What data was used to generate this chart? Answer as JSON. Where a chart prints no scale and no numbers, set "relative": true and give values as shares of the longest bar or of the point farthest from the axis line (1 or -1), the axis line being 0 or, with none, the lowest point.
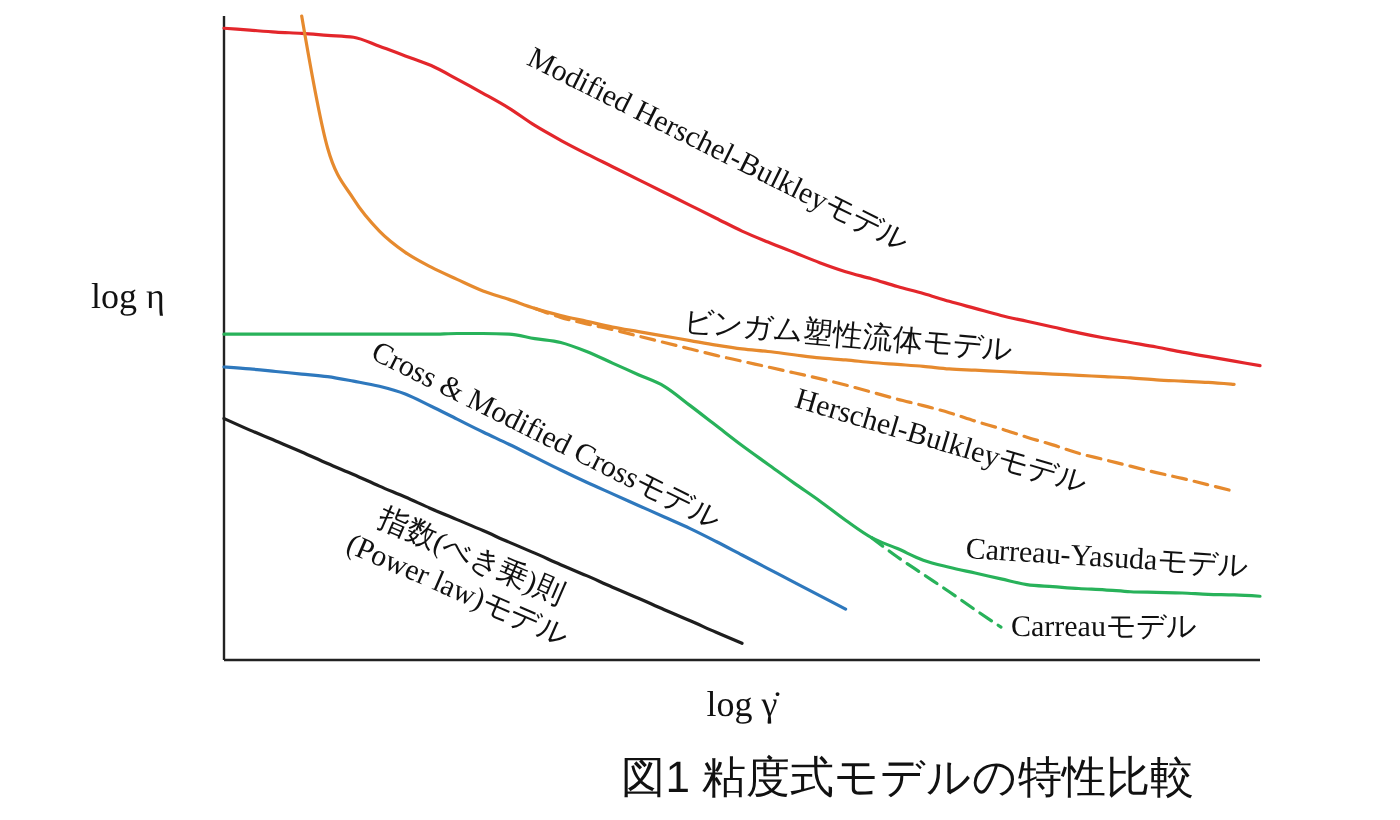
{
  "chart_data": {
    "type": "line",
    "relative": true,
    "title": "図1 粘度式モデルの特性比較",
    "xlabel": "log γ̇",
    "ylabel": "log η",
    "categories": [
      null,
      null,
      null,
      null,
      null,
      null,
      null,
      null,
      null,
      null,
      null,
      null,
      null,
      null,
      null,
      null,
      null,
      null,
      null,
      null,
      null,
      null,
      null,
      null,
      null,
      null,
      null,
      null,
      null,
      null,
      null,
      null,
      null,
      null,
      null,
      null,
      null,
      null,
      null,
      null,
      null
    ],
    "series": [
      {
        "name": "Modified Herschel-Bulkleyモデル",
        "color": "#e3262b",
        "values": [
          0.981,
          0.978,
          0.975,
          0.973,
          0.97,
          0.967,
          0.953,
          0.938,
          0.923,
          0.902,
          0.88,
          0.857,
          0.83,
          0.807,
          0.786,
          0.766,
          0.746,
          0.726,
          0.706,
          0.686,
          0.666,
          0.649,
          0.633,
          0.617,
          0.603,
          0.592,
          0.58,
          0.569,
          0.557,
          0.546,
          0.535,
          0.526,
          0.517,
          0.508,
          0.5,
          0.493,
          0.486,
          0.478,
          0.471,
          0.464,
          0.457
        ]
      },
      {
        "name": "ビンガム塑性流体モデル",
        "color": "#e68a2e",
        "values": [
          null,
          null,
          null,
          1.0,
          0.795,
          0.716,
          0.666,
          0.633,
          0.61,
          0.591,
          0.573,
          0.56,
          0.546,
          0.535,
          0.526,
          0.517,
          0.51,
          0.503,
          0.496,
          0.489,
          0.483,
          0.479,
          0.474,
          0.469,
          0.466,
          0.462,
          0.459,
          0.456,
          0.452,
          0.45,
          0.448,
          0.446,
          0.444,
          0.442,
          0.44,
          0.438,
          0.435,
          0.433,
          0.431,
          0.428,
          null
        ]
      },
      {
        "name": "Herschel-Bulkleyモデル",
        "color": "#e68a2e",
        "line_style": "dashed",
        "values": [
          null,
          null,
          null,
          null,
          null,
          null,
          null,
          null,
          null,
          null,
          null,
          null,
          0.546,
          0.532,
          0.522,
          0.513,
          0.503,
          0.493,
          0.483,
          0.473,
          0.464,
          0.455,
          0.446,
          0.437,
          0.427,
          0.416,
          0.405,
          0.395,
          0.384,
          0.371,
          0.359,
          0.346,
          0.334,
          0.321,
          0.311,
          0.301,
          0.291,
          0.282,
          0.272,
          0.262,
          null
        ]
      },
      {
        "name": "Carreau-Yasudaモデル",
        "color": "#28b25a",
        "values": [
          0.506,
          0.506,
          0.506,
          0.506,
          0.506,
          0.506,
          0.506,
          0.506,
          0.506,
          0.507,
          0.507,
          0.506,
          0.499,
          0.493,
          0.479,
          0.461,
          0.443,
          0.425,
          0.395,
          0.364,
          0.333,
          0.304,
          0.275,
          0.247,
          0.217,
          0.19,
          0.173,
          0.155,
          0.144,
          0.135,
          0.126,
          0.117,
          0.114,
          0.111,
          0.109,
          0.106,
          0.105,
          0.104,
          0.102,
          0.101,
          0.099
        ]
      },
      {
        "name": "Carreauモデル",
        "color": "#28b25a",
        "line_style": "dashed",
        "values": [
          null,
          null,
          null,
          null,
          null,
          null,
          null,
          null,
          null,
          null,
          null,
          null,
          null,
          null,
          null,
          null,
          null,
          null,
          null,
          null,
          null,
          null,
          null,
          null,
          null,
          0.19,
          0.16,
          0.133,
          0.106,
          0.078,
          0.051,
          null,
          null,
          null,
          null,
          null,
          null,
          null,
          null,
          null,
          null
        ]
      },
      {
        "name": "Cross & Modified Crossモデル",
        "color": "#2e78bd",
        "values": [
          0.455,
          0.452,
          0.448,
          0.444,
          0.44,
          0.433,
          0.425,
          0.413,
          0.394,
          0.374,
          0.354,
          0.335,
          0.315,
          0.295,
          0.276,
          0.258,
          0.24,
          0.222,
          0.204,
          0.184,
          0.163,
          0.142,
          0.121,
          0.1,
          0.079,
          null,
          null,
          null,
          null,
          null,
          null,
          null,
          null,
          null,
          null,
          null,
          null,
          null,
          null,
          null,
          null
        ]
      },
      {
        "name": "指数(べき乗)則(Power law)モデル",
        "color": "#1e1e1e",
        "values": [
          0.375,
          0.357,
          0.34,
          0.323,
          0.305,
          0.288,
          0.27,
          0.253,
          0.235,
          0.218,
          0.201,
          0.183,
          0.166,
          0.148,
          0.131,
          0.113,
          0.096,
          0.078,
          0.061,
          0.043,
          0.026,
          null,
          null,
          null,
          null,
          null,
          null,
          null,
          null,
          null,
          null,
          null,
          null,
          null,
          null,
          null,
          null,
          null,
          null,
          null,
          null
        ]
      }
    ]
  }
}
